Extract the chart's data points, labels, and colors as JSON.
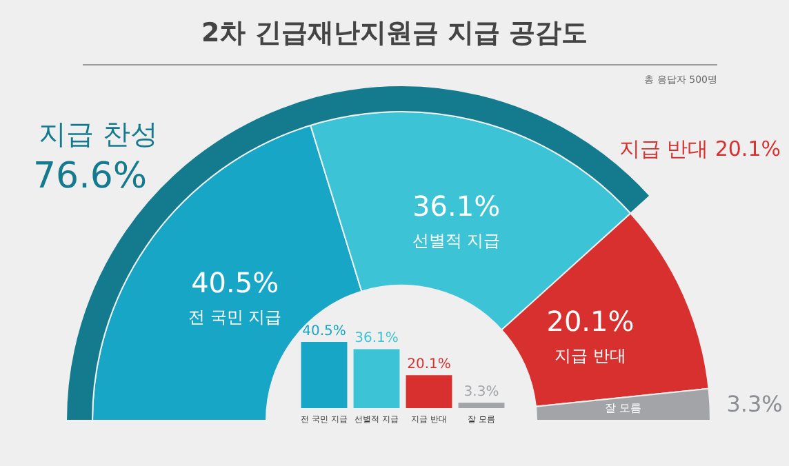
{
  "chart_data": [
    {
      "type": "donut",
      "title": "2차 긴급재난지원금 지급 공감도",
      "subtitle": "총 응답자 500명",
      "categories": [
        "전 국민 지급",
        "선별적 지급",
        "지급 반대",
        "잘 모름"
      ],
      "values": [
        40.5,
        36.1,
        20.1,
        3.3
      ],
      "value_labels": [
        "40.5%",
        "36.1%",
        "20.1%",
        "3.3%"
      ],
      "colors": [
        "#18a6c6",
        "#3cc3d5",
        "#d8302f",
        "#a2a4a8"
      ],
      "annotations": [
        "지급 반대 20.1%"
      ]
    },
    {
      "type": "pie",
      "categories": [
        "지급 찬성"
      ],
      "values": [
        76.6
      ],
      "value_labels": [
        "76.6%"
      ],
      "colors": [
        "#147b8f"
      ]
    },
    {
      "type": "bar",
      "categories": [
        "전 국민 지급",
        "선별적 지급",
        "지급 반대",
        "잘 모름"
      ],
      "values": [
        40.5,
        36.1,
        20.1,
        3.3
      ],
      "value_labels": [
        "40.5%",
        "36.1%",
        "20.1%",
        "3.3%"
      ],
      "colors": [
        "#18a6c6",
        "#3cc3d5",
        "#d8302f",
        "#a2a4a8"
      ]
    }
  ]
}
